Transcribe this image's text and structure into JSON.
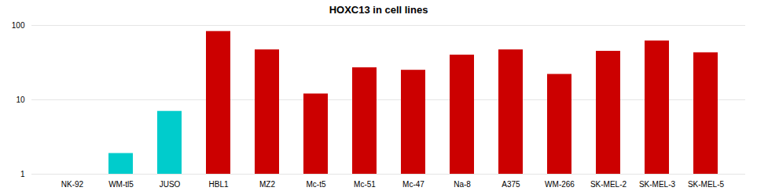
{
  "chart_data": {
    "type": "bar",
    "title": "HOXC13 in cell lines",
    "categories": [
      "NK-92",
      "WM-tl5",
      "JUSO",
      "HBL1",
      "MZ2",
      "Mc-t5",
      "Mc-51",
      "Mc-47",
      "Na-8",
      "A375",
      "WM-266",
      "SK-MEL-2",
      "SK-MEL-3",
      "SK-MEL-5"
    ],
    "values": [
      1.0,
      1.9,
      7.0,
      83.0,
      47.0,
      12.0,
      27.0,
      25.0,
      40.0,
      47.0,
      22.0,
      45.0,
      62.0,
      43.0
    ],
    "colors": [
      "#00CCCC",
      "#00CCCC",
      "#00CCCC",
      "#CC0000",
      "#CC0000",
      "#CC0000",
      "#CC0000",
      "#CC0000",
      "#CC0000",
      "#CC0000",
      "#CC0000",
      "#CC0000",
      "#CC0000",
      "#CC0000"
    ],
    "log": "y",
    "ylim": [
      1,
      100
    ],
    "yticks": [
      1,
      10,
      100
    ],
    "grid": true
  }
}
